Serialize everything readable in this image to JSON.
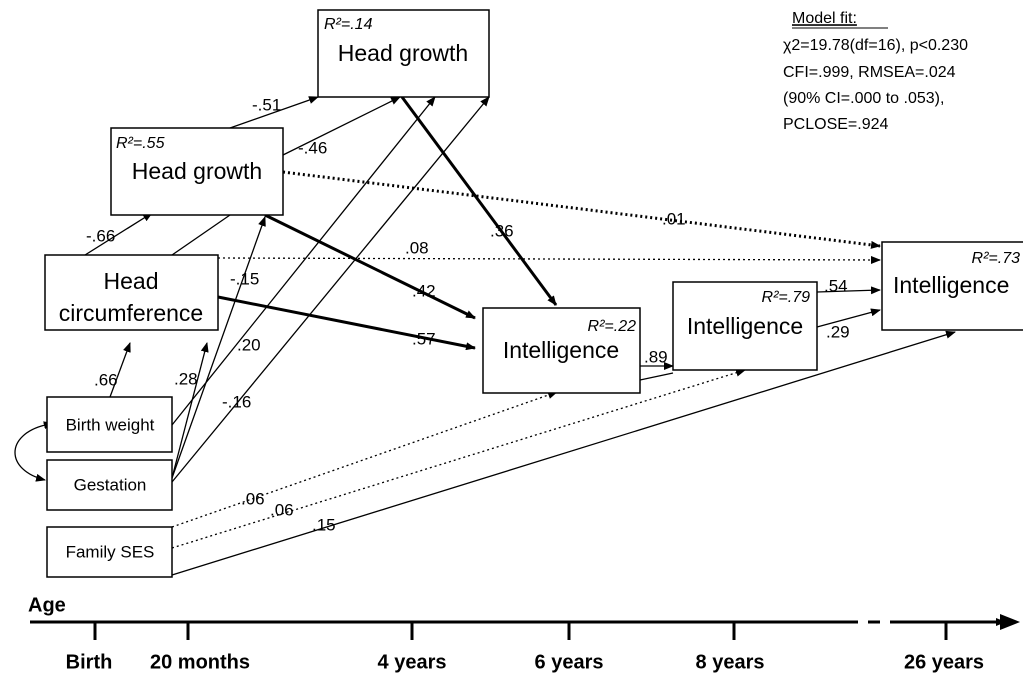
{
  "nodes": [
    {
      "label": "Birth weight"
    },
    {
      "label": "Gestation"
    },
    {
      "label": "Family SES"
    },
    {
      "label_lines": [
        "Head",
        "circumference"
      ]
    },
    {
      "label": "Head growth",
      "r2": "R²=.55"
    },
    {
      "label": "Head growth",
      "r2": "R²=.14"
    },
    {
      "label": "Intelligence",
      "r2": "R²=.22"
    },
    {
      "label": "Intelligence",
      "r2": "R²=.79"
    },
    {
      "label": "Intelligence",
      "r2": "R²=.73"
    }
  ],
  "edges": [
    {
      "label": ".66"
    },
    {
      "label": ".28"
    },
    {
      "label": "-.15"
    },
    {
      "label": ".20"
    },
    {
      "label": "-.16"
    },
    {
      "label": "-.66"
    },
    {
      "label": "-.51"
    },
    {
      "label": "-.46"
    },
    {
      "label": ".36"
    },
    {
      "label": ".01"
    },
    {
      "label": ".08"
    },
    {
      "label": ".42"
    },
    {
      "label": ".57"
    },
    {
      "label": ".89"
    },
    {
      "label": ".54"
    },
    {
      "label": ".29"
    },
    {
      "label": ".06"
    },
    {
      "label": ".06"
    },
    {
      "label": ".15"
    }
  ],
  "model_fit": {
    "title": "Model fit:",
    "lines": [
      "χ2=19.78(df=16), p<0.230",
      "CFI=.999, RMSEA=.024",
      "(90% CI=.000 to .053),",
      "PCLOSE=.924"
    ]
  },
  "axis": {
    "title": "Age",
    "ticks": [
      "Birth",
      "20 months",
      "4 years",
      "6 years",
      "8 years",
      "26 years"
    ]
  }
}
